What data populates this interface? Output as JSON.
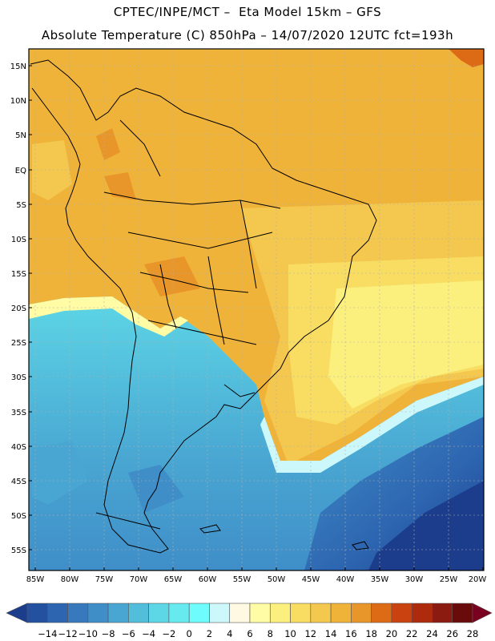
{
  "title_line1": "CPTEC/INPE/MCT –  Eta Model 15km – GFS",
  "title_line2": "Absolute Temperature (C) 850hPa – 14/07/2020 12UTC fct=193h",
  "lat_labels": [
    "15N",
    "10N",
    "5N",
    "EQ",
    "5S",
    "10S",
    "15S",
    "20S",
    "25S",
    "30S",
    "35S",
    "40S",
    "45S",
    "50S",
    "55S"
  ],
  "lon_labels": [
    "85W",
    "80W",
    "75W",
    "70W",
    "65W",
    "60W",
    "55W",
    "50W",
    "45W",
    "40W",
    "35W",
    "30W",
    "25W",
    "20W"
  ],
  "colorbar": {
    "labels": [
      "-14",
      "-12",
      "-10",
      "-8",
      "-6",
      "-4",
      "-2",
      "0",
      "2",
      "4",
      "6",
      "8",
      "10",
      "12",
      "14",
      "16",
      "18",
      "20",
      "22",
      "24",
      "26",
      "28"
    ],
    "colors": [
      "#1c3d8b",
      "#2450a0",
      "#2d65b0",
      "#3779bc",
      "#3f8ec8",
      "#49a6d2",
      "#53bedc",
      "#5dd6e6",
      "#66eaf0",
      "#6ffcfc",
      "#cdf8fb",
      "#fff9e3",
      "#fffca5",
      "#fbf07d",
      "#f8dd62",
      "#f4c84e",
      "#f0b33a",
      "#e8962a",
      "#dd6a15",
      "#c9420f",
      "#ad2a0c",
      "#8b1a10",
      "#6a0b0b",
      "#7a0020"
    ]
  }
}
